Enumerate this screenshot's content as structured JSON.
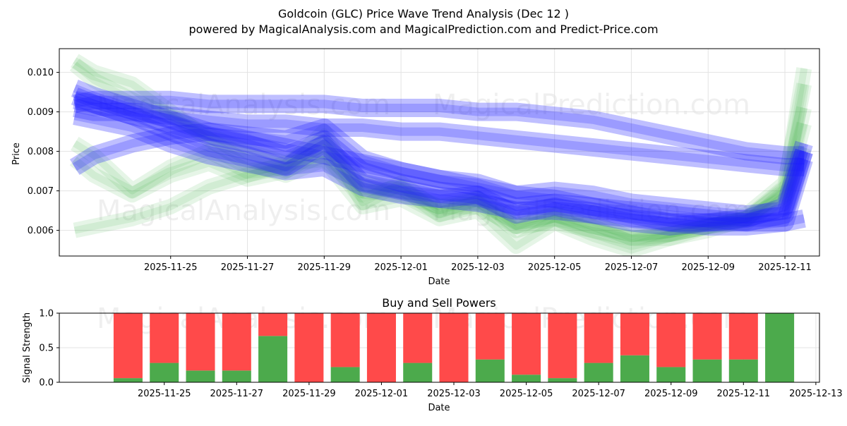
{
  "chart_data": [
    {
      "type": "line",
      "title": "Goldcoin (GLC) Price Wave Trend Analysis (Dec 12 )",
      "subtitle": "powered by MagicalAnalysis.com and MagicalPrediction.com and Predict-Price.com",
      "xlabel": "Date",
      "ylabel": "Price",
      "ylim": [
        0.00535,
        0.0106
      ],
      "yticks": [
        0.006,
        0.007,
        0.008,
        0.009,
        0.01
      ],
      "ytick_labels": [
        "0.006",
        "0.007",
        "0.008",
        "0.009",
        "0.010"
      ],
      "xlim": [
        -1.9,
        17.9
      ],
      "xticks": [
        1,
        3,
        5,
        7,
        9,
        11,
        13,
        15,
        17
      ],
      "xtick_labels": [
        "2025-11-25",
        "2025-11-27",
        "2025-11-29",
        "2025-12-01",
        "2025-12-03",
        "2025-12-05",
        "2025-12-07",
        "2025-12-09",
        "2025-12-11"
      ],
      "grid": true,
      "watermarks": [
        "MagicalAnalysis.com",
        "MagicalPrediction.com",
        "MagicalAnalysis.com",
        "MagicalPrediction.com"
      ],
      "colors": {
        "historical": "#3cb043",
        "prediction": "#1a1aff"
      },
      "x": [
        -1.5,
        -1,
        0,
        1,
        2,
        3,
        4,
        5,
        6,
        7,
        8,
        9,
        10,
        11,
        12,
        13,
        14,
        15,
        16,
        17,
        17.5
      ],
      "series": [
        {
          "name": "historical-wave-1",
          "kind": "historical",
          "values": [
            0.0102,
            0.0098,
            0.0093,
            0.0089,
            0.0084,
            0.008,
            0.0077,
            0.0082,
            0.0072,
            0.007,
            0.0066,
            0.0068,
            0.0062,
            0.0064,
            0.0061,
            0.0059,
            0.006,
            0.0062,
            0.0064,
            0.0072,
            0.0097
          ]
        },
        {
          "name": "historical-wave-2",
          "kind": "historical",
          "values": [
            0.0078,
            0.0074,
            0.0069,
            0.0074,
            0.0077,
            0.0073,
            0.0075,
            0.0081,
            0.0069,
            0.0071,
            0.0064,
            0.0067,
            0.006,
            0.0063,
            0.006,
            0.0058,
            0.0059,
            0.0061,
            0.0062,
            0.0069,
            0.0087
          ]
        },
        {
          "name": "historical-wave-3",
          "kind": "historical",
          "values": [
            0.006,
            0.0061,
            0.0063,
            0.0066,
            0.0071,
            0.0074,
            0.0077,
            0.0078,
            0.007,
            0.0069,
            0.0066,
            0.0066,
            0.0061,
            0.0062,
            0.006,
            0.0057,
            0.0059,
            0.0061,
            0.0063,
            0.0068,
            0.0081
          ]
        },
        {
          "name": "historical-wave-4",
          "kind": "historical",
          "values": [
            0.0103,
            0.01,
            0.0097,
            0.009,
            0.0083,
            0.0077,
            0.0074,
            0.0078,
            0.0066,
            0.0068,
            0.0063,
            0.0065,
            0.0056,
            0.0062,
            0.0058,
            0.0055,
            0.0058,
            0.0061,
            0.0063,
            0.0071,
            0.0101
          ]
        },
        {
          "name": "historical-wave-5",
          "kind": "historical",
          "values": [
            0.0082,
            0.0079,
            0.007,
            0.0076,
            0.008,
            0.0075,
            0.0076,
            0.0085,
            0.0067,
            0.0072,
            0.0065,
            0.0068,
            0.0061,
            0.0064,
            0.0062,
            0.0058,
            0.0058,
            0.006,
            0.0063,
            0.007,
            0.0091
          ]
        },
        {
          "name": "prediction-wave-1",
          "kind": "prediction",
          "values": [
            0.0092,
            0.0093,
            0.0093,
            0.0093,
            0.0092,
            0.0092,
            0.0092,
            0.0092,
            0.0091,
            0.0091,
            0.0091,
            0.009,
            0.009,
            0.0089,
            0.0088,
            0.0086,
            0.0084,
            0.0082,
            0.008,
            0.0079,
            0.0079
          ]
        },
        {
          "name": "prediction-wave-2",
          "kind": "prediction",
          "values": [
            0.0094,
            0.0092,
            0.0089,
            0.0085,
            0.0081,
            0.0079,
            0.0076,
            0.0082,
            0.0072,
            0.007,
            0.0068,
            0.0069,
            0.0064,
            0.0066,
            0.0064,
            0.0062,
            0.0061,
            0.0062,
            0.0063,
            0.0066,
            0.0082
          ]
        },
        {
          "name": "prediction-wave-3",
          "kind": "prediction",
          "values": [
            0.0089,
            0.0088,
            0.0086,
            0.0082,
            0.0079,
            0.0077,
            0.0075,
            0.0076,
            0.0071,
            0.0069,
            0.0068,
            0.0067,
            0.0065,
            0.0065,
            0.0064,
            0.0063,
            0.0062,
            0.0062,
            0.0062,
            0.0064,
            0.008
          ]
        },
        {
          "name": "prediction-wave-4",
          "kind": "prediction",
          "values": [
            0.0091,
            0.009,
            0.009,
            0.0089,
            0.0088,
            0.0087,
            0.0087,
            0.0086,
            0.0086,
            0.0085,
            0.0085,
            0.0084,
            0.0083,
            0.0082,
            0.0081,
            0.008,
            0.0079,
            0.0078,
            0.0077,
            0.0076,
            0.0076
          ]
        },
        {
          "name": "prediction-wave-5",
          "kind": "prediction",
          "values": [
            0.0093,
            0.0092,
            0.0089,
            0.0087,
            0.0084,
            0.0082,
            0.0079,
            0.0083,
            0.0075,
            0.0072,
            0.007,
            0.0069,
            0.0066,
            0.0067,
            0.0066,
            0.0064,
            0.0062,
            0.0061,
            0.0061,
            0.0062,
            0.0078
          ]
        },
        {
          "name": "prediction-wave-6",
          "kind": "prediction",
          "values": [
            0.0076,
            0.0079,
            0.0082,
            0.0084,
            0.0085,
            0.0084,
            0.0083,
            0.0086,
            0.0078,
            0.0075,
            0.0073,
            0.0072,
            0.0069,
            0.007,
            0.0069,
            0.0067,
            0.0066,
            0.0065,
            0.0064,
            0.0065,
            0.008
          ]
        },
        {
          "name": "prediction-wave-7",
          "kind": "prediction",
          "values": [
            0.0096,
            0.0094,
            0.0091,
            0.0088,
            0.0085,
            0.0083,
            0.0081,
            0.0079,
            0.0077,
            0.0075,
            0.0073,
            0.0071,
            0.0069,
            0.0068,
            0.0066,
            0.0065,
            0.0064,
            0.0063,
            0.0062,
            0.0062,
            0.0063
          ]
        }
      ]
    },
    {
      "type": "bar",
      "title": "Buy and Sell Powers",
      "xlabel": "Date",
      "ylabel": "Signal Strength",
      "ylim": [
        0,
        1
      ],
      "yticks": [
        0,
        0.5,
        1
      ],
      "ytick_labels": [
        "0.0",
        "0.5",
        "1.0"
      ],
      "xlim": [
        -1.9,
        19.1
      ],
      "xticks": [
        1,
        3,
        5,
        7,
        9,
        11,
        13,
        15,
        17,
        19
      ],
      "xtick_labels": [
        "2025-11-25",
        "2025-11-27",
        "2025-11-29",
        "2025-12-01",
        "2025-12-03",
        "2025-12-05",
        "2025-12-07",
        "2025-12-09",
        "2025-12-11",
        "2025-12-13"
      ],
      "grid": true,
      "watermarks": [
        "MagicalAnalysis.com",
        "MagicalPrediction.com"
      ],
      "colors": {
        "buy": "#4caa4c",
        "sell": "#ff4a4a"
      },
      "x": [
        0,
        1,
        2,
        3,
        4,
        5,
        6,
        7,
        8,
        9,
        10,
        11,
        12,
        13,
        14,
        15,
        16,
        17,
        18
      ],
      "series": [
        {
          "name": "Buy",
          "values": [
            0.06,
            0.28,
            0.17,
            0.17,
            0.67,
            0.0,
            0.22,
            0.0,
            0.28,
            0.0,
            0.33,
            0.11,
            0.06,
            0.28,
            0.39,
            0.22,
            0.33,
            0.33,
            1.0
          ]
        },
        {
          "name": "Sell",
          "values": [
            0.94,
            0.72,
            0.83,
            0.83,
            0.33,
            1.0,
            0.78,
            1.0,
            0.72,
            1.0,
            0.67,
            0.89,
            0.94,
            0.72,
            0.61,
            0.78,
            0.67,
            0.67,
            0.0
          ]
        }
      ]
    }
  ]
}
